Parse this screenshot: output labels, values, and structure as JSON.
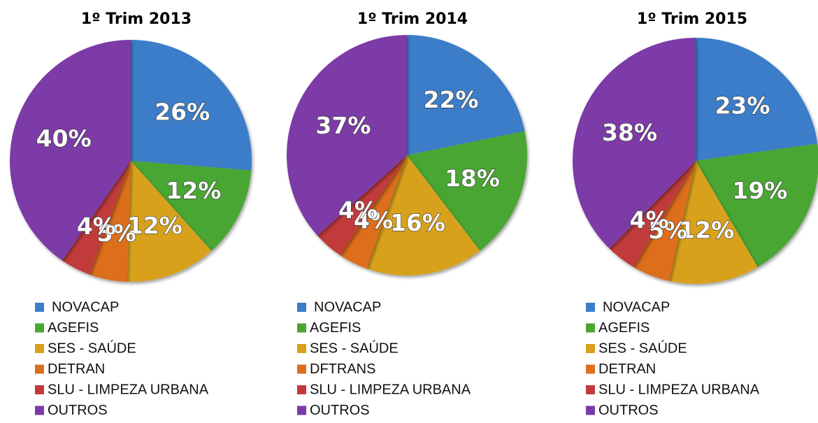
{
  "chart_data": [
    {
      "type": "pie",
      "title": "1º Trim 2013",
      "categories": [
        "NOVACAP",
        "AGEFIS",
        "SES - SAÚDE",
        "DETRAN",
        "SLU - LIMPEZA URBANA",
        "OUTROS"
      ],
      "values": [
        26,
        12,
        12,
        5,
        4,
        40
      ],
      "value_labels": [
        "26%",
        "12%",
        "12%",
        "5%",
        "4%",
        "40%"
      ],
      "colors": [
        "#3b7dc8",
        "#49a633",
        "#d8a11c",
        "#dc6e1f",
        "#c23a3b",
        "#7b3ba6"
      ]
    },
    {
      "type": "pie",
      "title": "1º Trim 2014",
      "categories": [
        "NOVACAP",
        "AGEFIS",
        "SES - SAÚDE",
        "DFTRANS",
        "SLU - LIMPEZA URBANA",
        "OUTROS"
      ],
      "values": [
        22,
        18,
        16,
        4,
        4,
        37
      ],
      "value_labels": [
        "22%",
        "18%",
        "16%",
        "4%",
        "4%",
        "37%"
      ],
      "colors": [
        "#3b7dc8",
        "#49a633",
        "#d8a11c",
        "#dc6e1f",
        "#c23a3b",
        "#7b3ba6"
      ]
    },
    {
      "type": "pie",
      "title": "1º Trim 2015",
      "categories": [
        "NOVACAP",
        "AGEFIS",
        "SES - SAÚDE",
        "DETRAN",
        "SLU - LIMPEZA URBANA",
        "OUTROS"
      ],
      "values": [
        23,
        19,
        12,
        5,
        4,
        38
      ],
      "value_labels": [
        "23%",
        "19%",
        "12%",
        "5%",
        "4%",
        "38%"
      ],
      "colors": [
        "#3b7dc8",
        "#49a633",
        "#d8a11c",
        "#dc6e1f",
        "#c23a3b",
        "#7b3ba6"
      ]
    }
  ]
}
